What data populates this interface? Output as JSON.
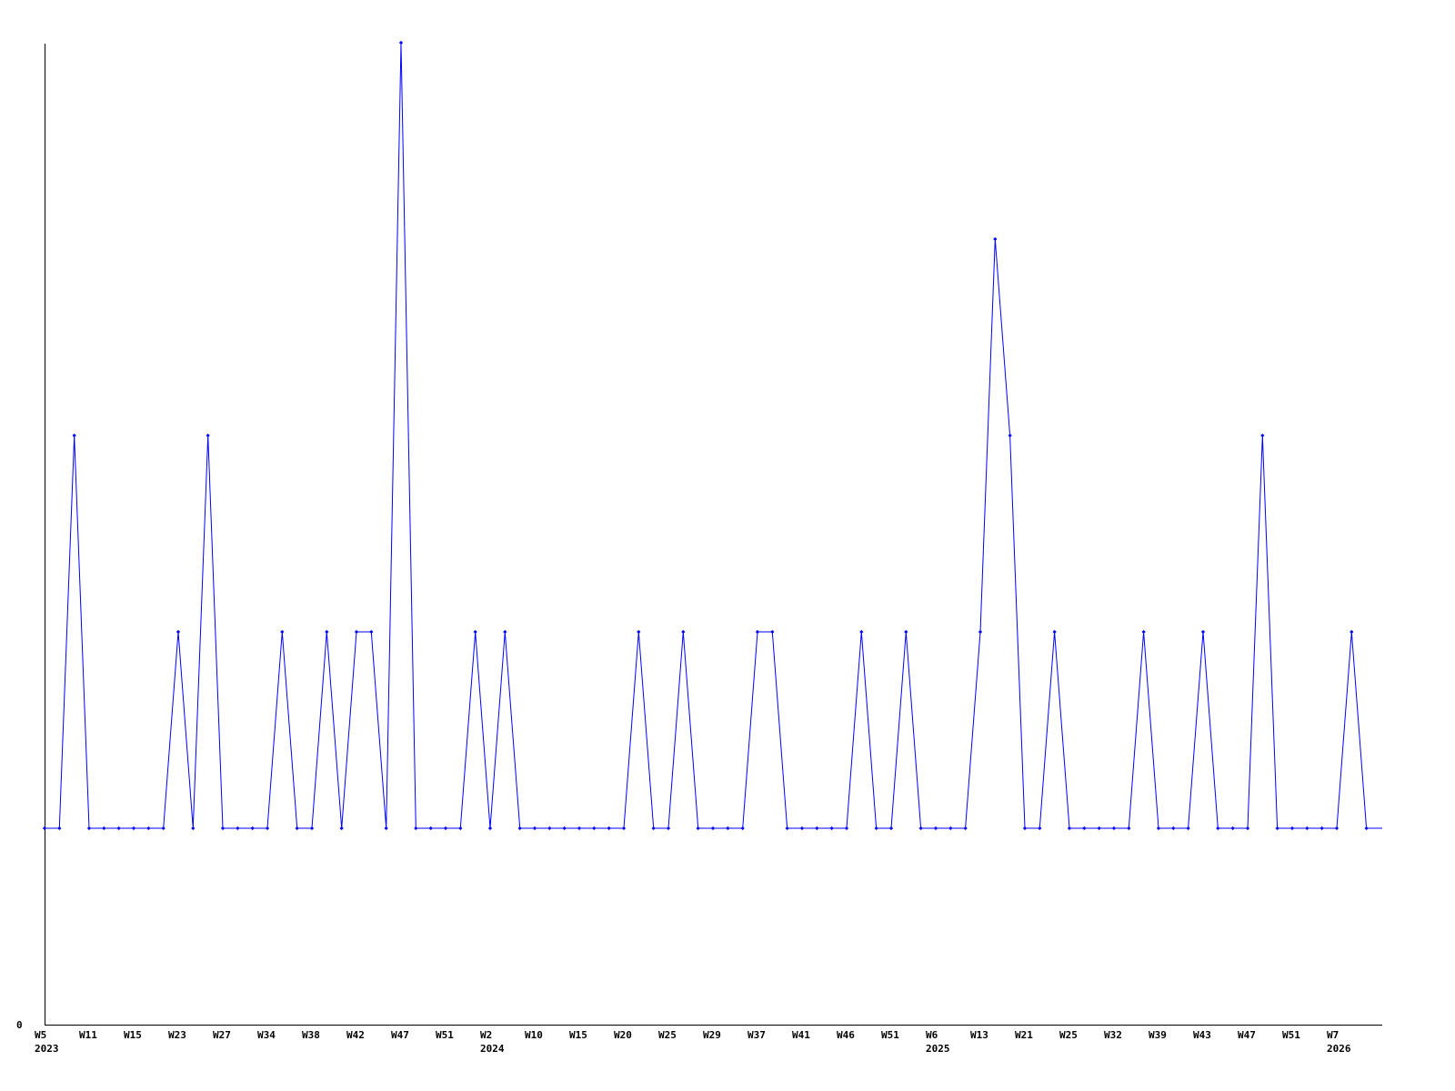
{
  "chart_data": {
    "type": "line",
    "title": "",
    "xlabel": "",
    "ylabel": "",
    "ylim": [
      0,
      5
    ],
    "y_tick_labels": [
      "0"
    ],
    "grid": false,
    "series_color": "#0000ff",
    "axis_color": "#000000",
    "x_tick_labels": [
      "W5",
      "W11",
      "W15",
      "W23",
      "W27",
      "W34",
      "W38",
      "W42",
      "W47",
      "W51",
      "W2",
      "W10",
      "W15",
      "W20",
      "W25",
      "W29",
      "W37",
      "W41",
      "W46",
      "W51",
      "W6",
      "W13",
      "W21",
      "W25",
      "W32",
      "W39",
      "W43",
      "W47",
      "W51",
      "W7"
    ],
    "year_labels": [
      {
        "label": "2023",
        "at_tick": "W5"
      },
      {
        "label": "2024",
        "at_tick": "W2"
      },
      {
        "label": "2025",
        "at_tick": "W6"
      },
      {
        "label": "2026",
        "at_tick": "W7"
      }
    ],
    "series": [
      {
        "values": [
          1,
          1,
          3,
          1,
          1,
          1,
          1,
          1,
          1,
          2,
          1,
          3,
          1,
          1,
          1,
          1,
          2,
          1,
          1,
          2,
          1,
          2,
          2,
          1,
          5,
          1,
          1,
          1,
          1,
          2,
          1,
          2,
          1,
          1,
          1,
          1,
          1,
          1,
          1,
          1,
          2,
          1,
          1,
          2,
          1,
          1,
          1,
          1,
          2,
          2,
          1,
          1,
          1,
          1,
          1,
          2,
          1,
          1,
          2,
          1,
          1,
          1,
          1,
          2,
          4,
          3,
          1,
          1,
          2,
          1,
          1,
          1,
          1,
          1,
          2,
          1,
          1,
          1,
          2,
          1,
          1,
          1,
          3,
          1,
          1,
          1,
          1,
          1,
          2,
          1
        ]
      }
    ]
  }
}
